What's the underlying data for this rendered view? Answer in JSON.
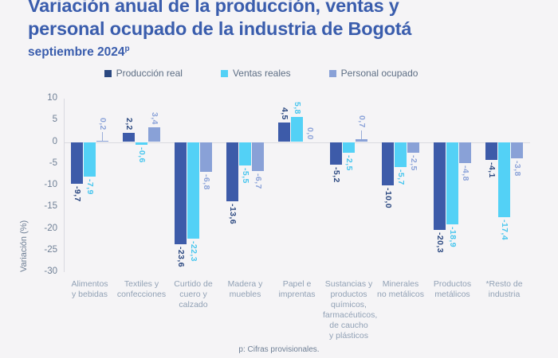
{
  "chart_data": {
    "type": "bar",
    "title": "Variación anual de la producción, ventas y personal ocupado de la industria de Bogotá",
    "title_lines": [
      "Variación anual de la producción, ventas y",
      "personal ocupado de la industria de Bogotá"
    ],
    "subtitle": "septiembre 2024",
    "subtitle_superscript": "p",
    "ylabel": "Variación (%)",
    "ylim": [
      -30,
      10
    ],
    "ytick_step": 5,
    "yticks": [
      "10",
      "5",
      "0",
      "-5",
      "-10",
      "-15",
      "-20",
      "-25",
      "-30"
    ],
    "grid": "zero-line-only",
    "legend_position": "top-center",
    "categories": [
      "Alimentos\ny bebidas",
      "Textiles y\nconfecciones",
      "Curtido de\ncuero y\ncalzado",
      "Madera y\nmuebles",
      "Papel e\nimprentas",
      "Sustancias y\nproductos\nquímicos,\nfarmacéuticos,\nde caucho\ny plásticos",
      "Minerales\nno metálicos",
      "Productos\nmetálicos",
      "*Resto de\nindustria"
    ],
    "series": [
      {
        "name": "Producción real",
        "color": "#3d5ba9",
        "legend_color": "#2b4880",
        "label_color": "#2b4880",
        "values": [
          -9.7,
          2.2,
          -23.6,
          -13.6,
          4.5,
          -5.2,
          -10.0,
          -20.3,
          -4.1
        ],
        "labels": [
          "-9,7",
          "2,2",
          "-23,6",
          "-13,6",
          "4,5",
          "-5,2",
          "-10,0",
          "-20,3",
          "-4,1"
        ]
      },
      {
        "name": "Ventas reales",
        "color": "#53d1f6",
        "legend_color": "#53d1f6",
        "label_color": "#49c6ee",
        "values": [
          -7.9,
          -0.6,
          -22.3,
          -5.5,
          5.8,
          -2.5,
          -5.7,
          -18.9,
          -17.4
        ],
        "labels": [
          "-7,9",
          "-0,6",
          "-22,3",
          "-5,5",
          "5,8",
          "-2,5",
          "-5,7",
          "-18,9",
          "-17,4"
        ]
      },
      {
        "name": "Personal ocupado",
        "color": "#89a1d7",
        "legend_color": "#89a1d7",
        "label_color": "#8da4d9",
        "values": [
          0.2,
          3.4,
          -6.8,
          -6.7,
          0.0,
          0.7,
          -2.5,
          -4.8,
          -3.8
        ],
        "labels": [
          "0,2",
          "3,4",
          "-6,8",
          "-6,7",
          "0,0",
          "0,7",
          "-2,5",
          "-4,8",
          "-3,8"
        ],
        "leaders": [
          true,
          false,
          false,
          false,
          false,
          true,
          false,
          false,
          false
        ]
      }
    ],
    "footnote": "p: Cifras provisionales."
  }
}
